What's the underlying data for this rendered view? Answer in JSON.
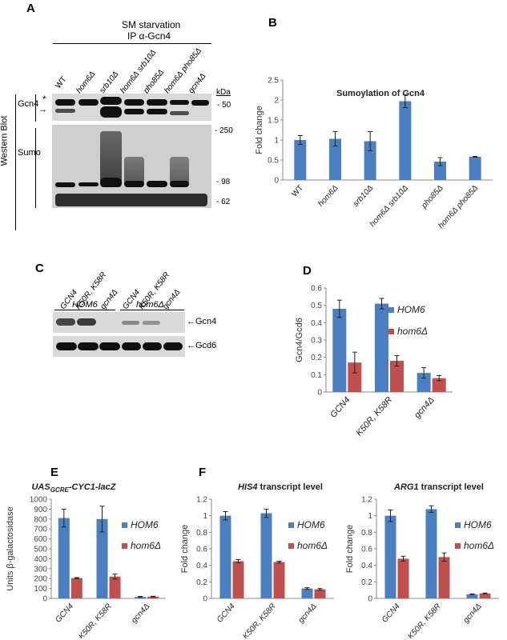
{
  "panelA": {
    "letter": "A",
    "condition": "SM starvation",
    "ip": "IP α-Gcn4",
    "lanes": [
      "WT",
      "hom6Δ",
      "srb10Δ",
      "hom6Δ srb10Δ",
      "pho85Δ",
      "hom6Δ pho85Δ",
      "gcn4Δ"
    ],
    "side_label": "Western Blot",
    "gcn4_label": "Gcn4",
    "sumo_label": "Sumo",
    "asterisk": "*",
    "kda_label": "kDa",
    "markers": [
      "- 50",
      "- 250",
      "- 98",
      "- 62"
    ]
  },
  "panelC": {
    "letter": "C",
    "lanes": [
      "GCN4",
      "K50R, K58R",
      "gcn4Δ",
      "GCN4",
      "K50R, K58R",
      "gcn4Δ"
    ],
    "group1": "HOM6",
    "group2": "hom6Δ",
    "band1": "←Gcn4",
    "band2": "←Gcd6"
  },
  "chart_data": [
    {
      "panel": "B",
      "type": "bar",
      "title": "Sumoylation of Gcn4",
      "ylabel": "Fold change",
      "ylim": [
        0,
        2.5
      ],
      "yticks": [
        "0",
        "0.5",
        "1",
        "1.5",
        "2",
        "2.5"
      ],
      "categories": [
        "WT",
        "hom6Δ",
        "srb10Δ",
        "hom6Δ srb10Δ",
        "pho85Δ",
        "hom6Δ pho85Δ"
      ],
      "values": [
        1.0,
        1.03,
        0.97,
        1.97,
        0.46,
        0.58
      ],
      "errors": [
        0.11,
        0.18,
        0.24,
        0.16,
        0.1,
        0.01
      ],
      "color": "#4a7fc1"
    },
    {
      "panel": "D",
      "type": "bar",
      "ylabel": "Gcn4/Gcd6",
      "ylim": [
        0,
        0.6
      ],
      "yticks": [
        "0",
        "0.1",
        "0.2",
        "0.3",
        "0.4",
        "0.5",
        "0.6"
      ],
      "categories": [
        "GCN4",
        "K50R, K58R",
        "gcn4Δ"
      ],
      "series": [
        {
          "name": "HOM6",
          "values": [
            0.48,
            0.51,
            0.11
          ],
          "errors": [
            0.05,
            0.03,
            0.03
          ],
          "color": "#4a7fc1"
        },
        {
          "name": "hom6Δ",
          "values": [
            0.17,
            0.18,
            0.08
          ],
          "errors": [
            0.06,
            0.03,
            0.015
          ],
          "color": "#c0504d"
        }
      ]
    },
    {
      "panel": "E",
      "type": "bar",
      "title": "UAS",
      "title_sub": "GCRE",
      "title_rest": "-CYC1-lacZ",
      "ylabel": "Units β-galactosidase",
      "ylim": [
        0,
        1000
      ],
      "yticks": [
        "0",
        "100",
        "200",
        "300",
        "400",
        "500",
        "600",
        "700",
        "800",
        "900",
        "1000"
      ],
      "categories": [
        "GCN4",
        "K50R, K58R",
        "gcn4Δ"
      ],
      "series": [
        {
          "name": "HOM6",
          "values": [
            810,
            800,
            15
          ],
          "errors": [
            90,
            130,
            5
          ],
          "color": "#4a7fc1"
        },
        {
          "name": "hom6Δ",
          "values": [
            205,
            220,
            18
          ],
          "errors": [
            5,
            25,
            4
          ],
          "color": "#c0504d"
        }
      ]
    },
    {
      "panel": "F",
      "type": "bar",
      "title": "HIS4",
      "title_rest": " transcript level",
      "ylabel": "Fold change",
      "ylim": [
        0,
        1.2
      ],
      "yticks": [
        "0",
        "0.2",
        "0.4",
        "0.6",
        "0.8",
        "1",
        "1.2"
      ],
      "categories": [
        "GCN4",
        "K50R, K58R",
        "gcn4Δ"
      ],
      "series": [
        {
          "name": "HOM6",
          "values": [
            1.0,
            1.03,
            0.12
          ],
          "errors": [
            0.05,
            0.05,
            0.01
          ],
          "color": "#4a7fc1"
        },
        {
          "name": "hom6Δ",
          "values": [
            0.45,
            0.44,
            0.11
          ],
          "errors": [
            0.02,
            0.01,
            0.01
          ],
          "color": "#c0504d"
        }
      ]
    },
    {
      "panel": "F2",
      "type": "bar",
      "title": "ARG1",
      "title_rest": " transcript level",
      "ylabel": "Fold change",
      "ylim": [
        0,
        1.2
      ],
      "yticks": [
        "0",
        "0.2",
        "0.4",
        "0.6",
        "0.8",
        "1",
        "1.2"
      ],
      "categories": [
        "GCN4",
        "K50R, K58R",
        "gcn4Δ"
      ],
      "series": [
        {
          "name": "HOM6",
          "values": [
            1.0,
            1.08,
            0.05
          ],
          "errors": [
            0.07,
            0.04,
            0.005
          ],
          "color": "#4a7fc1"
        },
        {
          "name": "hom6Δ",
          "values": [
            0.48,
            0.5,
            0.06
          ],
          "errors": [
            0.03,
            0.05,
            0.005
          ],
          "color": "#c0504d"
        }
      ]
    }
  ],
  "letters": {
    "B": "B",
    "D": "D",
    "E": "E",
    "F": "F"
  }
}
